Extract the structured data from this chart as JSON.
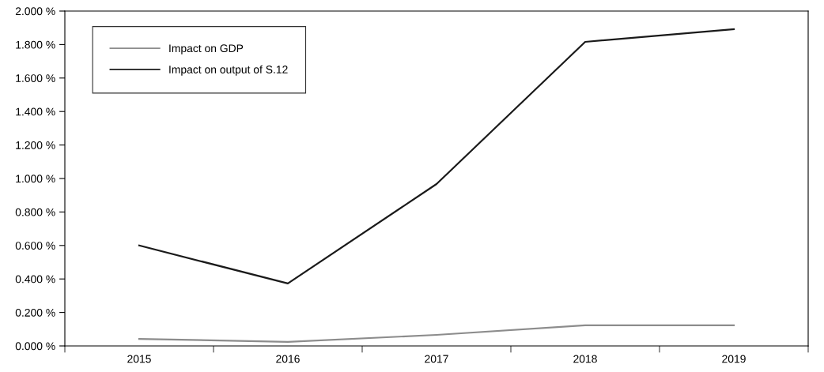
{
  "chart_data": {
    "type": "line",
    "categories": [
      "2015",
      "2016",
      "2017",
      "2018",
      "2019"
    ],
    "series": [
      {
        "name": "Impact on GDP",
        "color": "#8c8c8c",
        "values": [
          0.042,
          0.024,
          0.066,
          0.123,
          0.123
        ]
      },
      {
        "name": "Impact on output of S.12",
        "color": "#1a1a1a",
        "values": [
          0.6,
          0.373,
          0.967,
          1.816,
          1.892
        ]
      }
    ],
    "ylim": [
      0,
      2
    ],
    "yticks": [
      {
        "value": 0,
        "label": "0.000 %"
      },
      {
        "value": 0.2,
        "label": "0.200 %"
      },
      {
        "value": 0.4,
        "label": "0.400 %"
      },
      {
        "value": 0.6,
        "label": "0.600 %"
      },
      {
        "value": 0.8,
        "label": "0.800 %"
      },
      {
        "value": 1.0,
        "label": "1.000 %"
      },
      {
        "value": 1.2,
        "label": "1.200 %"
      },
      {
        "value": 1.4,
        "label": "1.400 %"
      },
      {
        "value": 1.6,
        "label": "1.600 %"
      },
      {
        "value": 1.8,
        "label": "1.800 %"
      },
      {
        "value": 2.0,
        "label": "2.000 %"
      }
    ],
    "legend": "top left",
    "grid": false,
    "marker": "none",
    "line_style": "solid"
  }
}
